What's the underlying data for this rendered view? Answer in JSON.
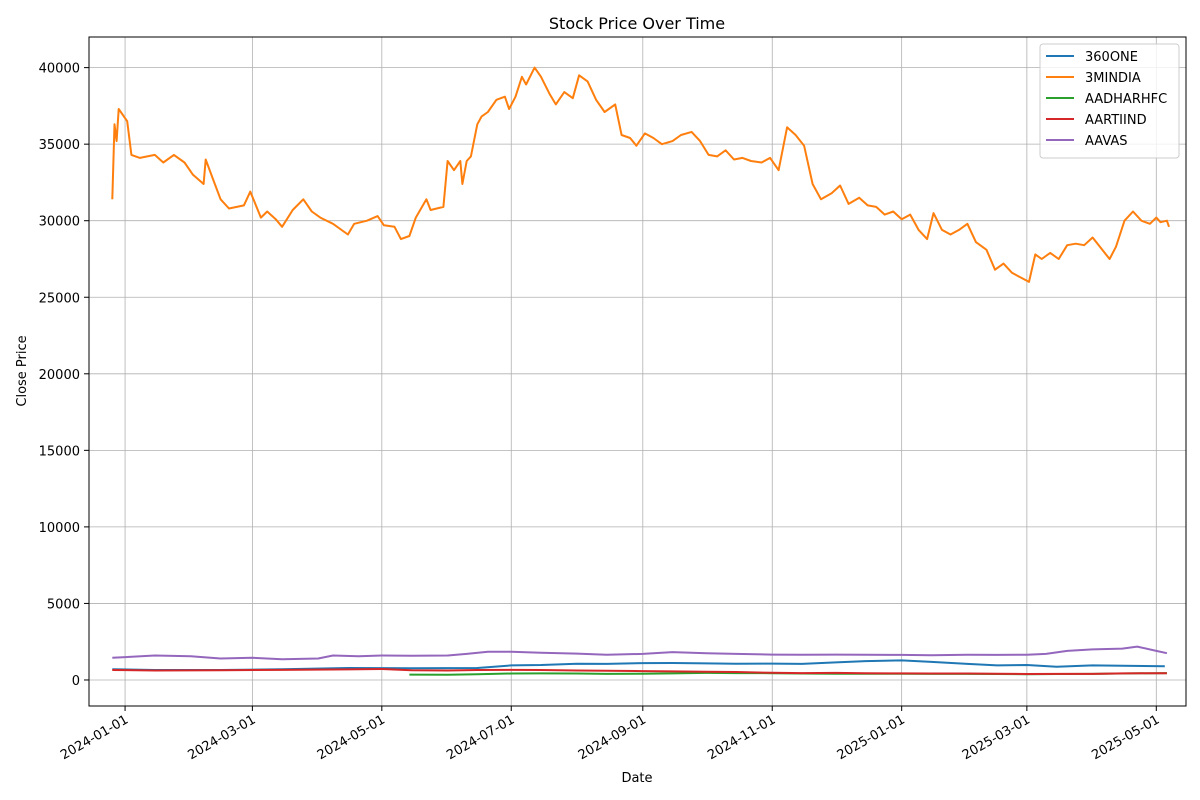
{
  "chart_data": {
    "type": "line",
    "title": "Stock Price Over Time",
    "xlabel": "Date",
    "ylabel": "Close Price",
    "grid": true,
    "legend_position": "top-right",
    "xlim": [
      "2023-12-15",
      "2025-05-15"
    ],
    "ylim": [
      -1700,
      42000
    ],
    "x_ticks": [
      "2024-01-01",
      "2024-03-01",
      "2024-05-01",
      "2024-07-01",
      "2024-09-01",
      "2024-11-01",
      "2025-01-01",
      "2025-03-01",
      "2025-05-01"
    ],
    "y_ticks": [
      0,
      5000,
      10000,
      15000,
      20000,
      25000,
      30000,
      35000,
      40000
    ],
    "series": [
      {
        "name": "360ONE",
        "color": "#1f77b4",
        "points": [
          [
            "2023-12-26",
            700
          ],
          [
            "2024-01-15",
            650
          ],
          [
            "2024-02-15",
            650
          ],
          [
            "2024-03-15",
            700
          ],
          [
            "2024-04-15",
            780
          ],
          [
            "2024-05-15",
            760
          ],
          [
            "2024-06-15",
            780
          ],
          [
            "2024-07-01",
            950
          ],
          [
            "2024-07-15",
            980
          ],
          [
            "2024-08-01",
            1060
          ],
          [
            "2024-08-15",
            1050
          ],
          [
            "2024-09-01",
            1100
          ],
          [
            "2024-09-15",
            1110
          ],
          [
            "2024-10-01",
            1080
          ],
          [
            "2024-10-15",
            1060
          ],
          [
            "2024-11-01",
            1070
          ],
          [
            "2024-11-15",
            1050
          ],
          [
            "2024-12-01",
            1150
          ],
          [
            "2024-12-15",
            1230
          ],
          [
            "2025-01-01",
            1280
          ],
          [
            "2025-01-15",
            1180
          ],
          [
            "2025-02-01",
            1050
          ],
          [
            "2025-02-15",
            950
          ],
          [
            "2025-03-01",
            980
          ],
          [
            "2025-03-15",
            870
          ],
          [
            "2025-04-01",
            950
          ],
          [
            "2025-04-15",
            930
          ],
          [
            "2025-05-05",
            900
          ]
        ]
      },
      {
        "name": "3MINDIA",
        "color": "#ff7f0e",
        "points": [
          [
            "2023-12-26",
            31400
          ],
          [
            "2023-12-27",
            36300
          ],
          [
            "2023-12-28",
            35200
          ],
          [
            "2023-12-29",
            37300
          ],
          [
            "2024-01-02",
            36500
          ],
          [
            "2024-01-04",
            34300
          ],
          [
            "2024-01-08",
            34100
          ],
          [
            "2024-01-15",
            34300
          ],
          [
            "2024-01-19",
            33800
          ],
          [
            "2024-01-24",
            34300
          ],
          [
            "2024-01-29",
            33800
          ],
          [
            "2024-02-02",
            33000
          ],
          [
            "2024-02-07",
            32400
          ],
          [
            "2024-02-08",
            34000
          ],
          [
            "2024-02-12",
            32500
          ],
          [
            "2024-02-15",
            31400
          ],
          [
            "2024-02-19",
            30800
          ],
          [
            "2024-02-26",
            31000
          ],
          [
            "2024-02-29",
            31900
          ],
          [
            "2024-03-05",
            30200
          ],
          [
            "2024-03-08",
            30600
          ],
          [
            "2024-03-12",
            30100
          ],
          [
            "2024-03-15",
            29600
          ],
          [
            "2024-03-20",
            30700
          ],
          [
            "2024-03-25",
            31400
          ],
          [
            "2024-03-29",
            30600
          ],
          [
            "2024-04-02",
            30200
          ],
          [
            "2024-04-08",
            29800
          ],
          [
            "2024-04-15",
            29100
          ],
          [
            "2024-04-18",
            29800
          ],
          [
            "2024-04-24",
            30000
          ],
          [
            "2024-04-29",
            30300
          ],
          [
            "2024-05-02",
            29700
          ],
          [
            "2024-05-07",
            29600
          ],
          [
            "2024-05-10",
            28800
          ],
          [
            "2024-05-14",
            29000
          ],
          [
            "2024-05-17",
            30200
          ],
          [
            "2024-05-22",
            31400
          ],
          [
            "2024-05-24",
            30700
          ],
          [
            "2024-05-30",
            30900
          ],
          [
            "2024-06-01",
            33900
          ],
          [
            "2024-06-04",
            33300
          ],
          [
            "2024-06-07",
            33900
          ],
          [
            "2024-06-08",
            32400
          ],
          [
            "2024-06-10",
            33900
          ],
          [
            "2024-06-12",
            34200
          ],
          [
            "2024-06-15",
            36300
          ],
          [
            "2024-06-17",
            36800
          ],
          [
            "2024-06-20",
            37100
          ],
          [
            "2024-06-24",
            37900
          ],
          [
            "2024-06-28",
            38100
          ],
          [
            "2024-06-30",
            37300
          ],
          [
            "2024-07-03",
            38100
          ],
          [
            "2024-07-06",
            39400
          ],
          [
            "2024-07-08",
            38900
          ],
          [
            "2024-07-12",
            40000
          ],
          [
            "2024-07-15",
            39400
          ],
          [
            "2024-07-19",
            38300
          ],
          [
            "2024-07-22",
            37600
          ],
          [
            "2024-07-26",
            38400
          ],
          [
            "2024-07-30",
            38000
          ],
          [
            "2024-08-02",
            39500
          ],
          [
            "2024-08-06",
            39100
          ],
          [
            "2024-08-10",
            37900
          ],
          [
            "2024-08-14",
            37100
          ],
          [
            "2024-08-19",
            37600
          ],
          [
            "2024-08-22",
            35600
          ],
          [
            "2024-08-26",
            35400
          ],
          [
            "2024-08-29",
            34900
          ],
          [
            "2024-09-02",
            35700
          ],
          [
            "2024-09-06",
            35400
          ],
          [
            "2024-09-10",
            35000
          ],
          [
            "2024-09-15",
            35200
          ],
          [
            "2024-09-19",
            35600
          ],
          [
            "2024-09-24",
            35800
          ],
          [
            "2024-09-28",
            35200
          ],
          [
            "2024-10-02",
            34300
          ],
          [
            "2024-10-06",
            34200
          ],
          [
            "2024-10-10",
            34600
          ],
          [
            "2024-10-14",
            34000
          ],
          [
            "2024-10-18",
            34100
          ],
          [
            "2024-10-22",
            33900
          ],
          [
            "2024-10-27",
            33800
          ],
          [
            "2024-10-31",
            34100
          ],
          [
            "2024-11-04",
            33300
          ],
          [
            "2024-11-08",
            36100
          ],
          [
            "2024-11-12",
            35600
          ],
          [
            "2024-11-16",
            34900
          ],
          [
            "2024-11-20",
            32400
          ],
          [
            "2024-11-24",
            31400
          ],
          [
            "2024-11-29",
            31800
          ],
          [
            "2024-12-03",
            32300
          ],
          [
            "2024-12-07",
            31100
          ],
          [
            "2024-12-12",
            31500
          ],
          [
            "2024-12-16",
            31000
          ],
          [
            "2024-12-20",
            30900
          ],
          [
            "2024-12-24",
            30400
          ],
          [
            "2024-12-28",
            30600
          ],
          [
            "2025-01-01",
            30100
          ],
          [
            "2025-01-05",
            30400
          ],
          [
            "2025-01-09",
            29400
          ],
          [
            "2025-01-13",
            28800
          ],
          [
            "2025-01-16",
            30500
          ],
          [
            "2025-01-20",
            29400
          ],
          [
            "2025-01-24",
            29100
          ],
          [
            "2025-01-28",
            29400
          ],
          [
            "2025-02-01",
            29800
          ],
          [
            "2025-02-05",
            28600
          ],
          [
            "2025-02-10",
            28100
          ],
          [
            "2025-02-14",
            26800
          ],
          [
            "2025-02-18",
            27200
          ],
          [
            "2025-02-22",
            26600
          ],
          [
            "2025-02-26",
            26300
          ],
          [
            "2025-03-02",
            26000
          ],
          [
            "2025-03-05",
            27800
          ],
          [
            "2025-03-08",
            27500
          ],
          [
            "2025-03-12",
            27900
          ],
          [
            "2025-03-16",
            27500
          ],
          [
            "2025-03-20",
            28400
          ],
          [
            "2025-03-24",
            28500
          ],
          [
            "2025-03-28",
            28400
          ],
          [
            "2025-04-01",
            28900
          ],
          [
            "2025-04-05",
            28200
          ],
          [
            "2025-04-09",
            27500
          ],
          [
            "2025-04-12",
            28300
          ],
          [
            "2025-04-16",
            30000
          ],
          [
            "2025-04-20",
            30600
          ],
          [
            "2025-04-24",
            30000
          ],
          [
            "2025-04-28",
            29800
          ],
          [
            "2025-05-01",
            30200
          ],
          [
            "2025-05-03",
            29900
          ],
          [
            "2025-05-06",
            30000
          ],
          [
            "2025-05-07",
            29600
          ]
        ]
      },
      {
        "name": "AADHARHFC",
        "color": "#2ca02c",
        "points": [
          [
            "2024-05-14",
            350
          ],
          [
            "2024-06-01",
            340
          ],
          [
            "2024-06-15",
            380
          ],
          [
            "2024-07-01",
            420
          ],
          [
            "2024-07-15",
            430
          ],
          [
            "2024-08-01",
            420
          ],
          [
            "2024-08-15",
            400
          ],
          [
            "2024-09-01",
            410
          ],
          [
            "2024-09-15",
            430
          ],
          [
            "2024-10-01",
            460
          ],
          [
            "2024-10-15",
            450
          ],
          [
            "2024-11-01",
            440
          ],
          [
            "2024-11-15",
            420
          ],
          [
            "2024-12-01",
            410
          ],
          [
            "2024-12-15",
            410
          ],
          [
            "2025-01-01",
            410
          ],
          [
            "2025-01-15",
            400
          ],
          [
            "2025-02-01",
            400
          ],
          [
            "2025-02-15",
            390
          ],
          [
            "2025-03-01",
            380
          ],
          [
            "2025-03-15",
            390
          ],
          [
            "2025-04-01",
            400
          ],
          [
            "2025-04-15",
            420
          ],
          [
            "2025-05-06",
            450
          ]
        ]
      },
      {
        "name": "AARTIIND",
        "color": "#d62728",
        "points": [
          [
            "2023-12-26",
            650
          ],
          [
            "2024-01-15",
            620
          ],
          [
            "2024-02-15",
            640
          ],
          [
            "2024-03-15",
            660
          ],
          [
            "2024-04-15",
            690
          ],
          [
            "2024-05-01",
            720
          ],
          [
            "2024-05-15",
            640
          ],
          [
            "2024-06-01",
            620
          ],
          [
            "2024-06-15",
            650
          ],
          [
            "2024-07-01",
            660
          ],
          [
            "2024-07-15",
            650
          ],
          [
            "2024-08-01",
            620
          ],
          [
            "2024-08-15",
            600
          ],
          [
            "2024-09-01",
            580
          ],
          [
            "2024-09-15",
            560
          ],
          [
            "2024-10-01",
            540
          ],
          [
            "2024-10-15",
            520
          ],
          [
            "2024-11-01",
            470
          ],
          [
            "2024-11-15",
            450
          ],
          [
            "2024-12-01",
            460
          ],
          [
            "2024-12-15",
            440
          ],
          [
            "2025-01-01",
            430
          ],
          [
            "2025-01-15",
            420
          ],
          [
            "2025-02-01",
            420
          ],
          [
            "2025-02-15",
            410
          ],
          [
            "2025-03-01",
            390
          ],
          [
            "2025-03-15",
            400
          ],
          [
            "2025-04-01",
            400
          ],
          [
            "2025-04-15",
            430
          ],
          [
            "2025-05-06",
            440
          ]
        ]
      },
      {
        "name": "AAVAS",
        "color": "#9467bd",
        "points": [
          [
            "2023-12-26",
            1450
          ],
          [
            "2024-01-15",
            1600
          ],
          [
            "2024-02-01",
            1550
          ],
          [
            "2024-02-15",
            1400
          ],
          [
            "2024-03-01",
            1450
          ],
          [
            "2024-03-15",
            1350
          ],
          [
            "2024-04-01",
            1400
          ],
          [
            "2024-04-08",
            1600
          ],
          [
            "2024-04-20",
            1550
          ],
          [
            "2024-05-01",
            1600
          ],
          [
            "2024-05-15",
            1580
          ],
          [
            "2024-06-01",
            1600
          ],
          [
            "2024-06-10",
            1700
          ],
          [
            "2024-06-20",
            1850
          ],
          [
            "2024-07-01",
            1850
          ],
          [
            "2024-07-15",
            1780
          ],
          [
            "2024-08-01",
            1720
          ],
          [
            "2024-08-15",
            1650
          ],
          [
            "2024-09-01",
            1700
          ],
          [
            "2024-09-15",
            1820
          ],
          [
            "2024-10-01",
            1750
          ],
          [
            "2024-10-15",
            1700
          ],
          [
            "2024-11-01",
            1660
          ],
          [
            "2024-11-15",
            1650
          ],
          [
            "2024-12-01",
            1660
          ],
          [
            "2024-12-15",
            1650
          ],
          [
            "2025-01-01",
            1640
          ],
          [
            "2025-01-15",
            1620
          ],
          [
            "2025-02-01",
            1650
          ],
          [
            "2025-02-15",
            1640
          ],
          [
            "2025-03-01",
            1650
          ],
          [
            "2025-03-10",
            1700
          ],
          [
            "2025-03-20",
            1900
          ],
          [
            "2025-04-01",
            2000
          ],
          [
            "2025-04-15",
            2050
          ],
          [
            "2025-04-22",
            2180
          ],
          [
            "2025-05-01",
            1900
          ],
          [
            "2025-05-06",
            1750
          ]
        ]
      }
    ]
  }
}
